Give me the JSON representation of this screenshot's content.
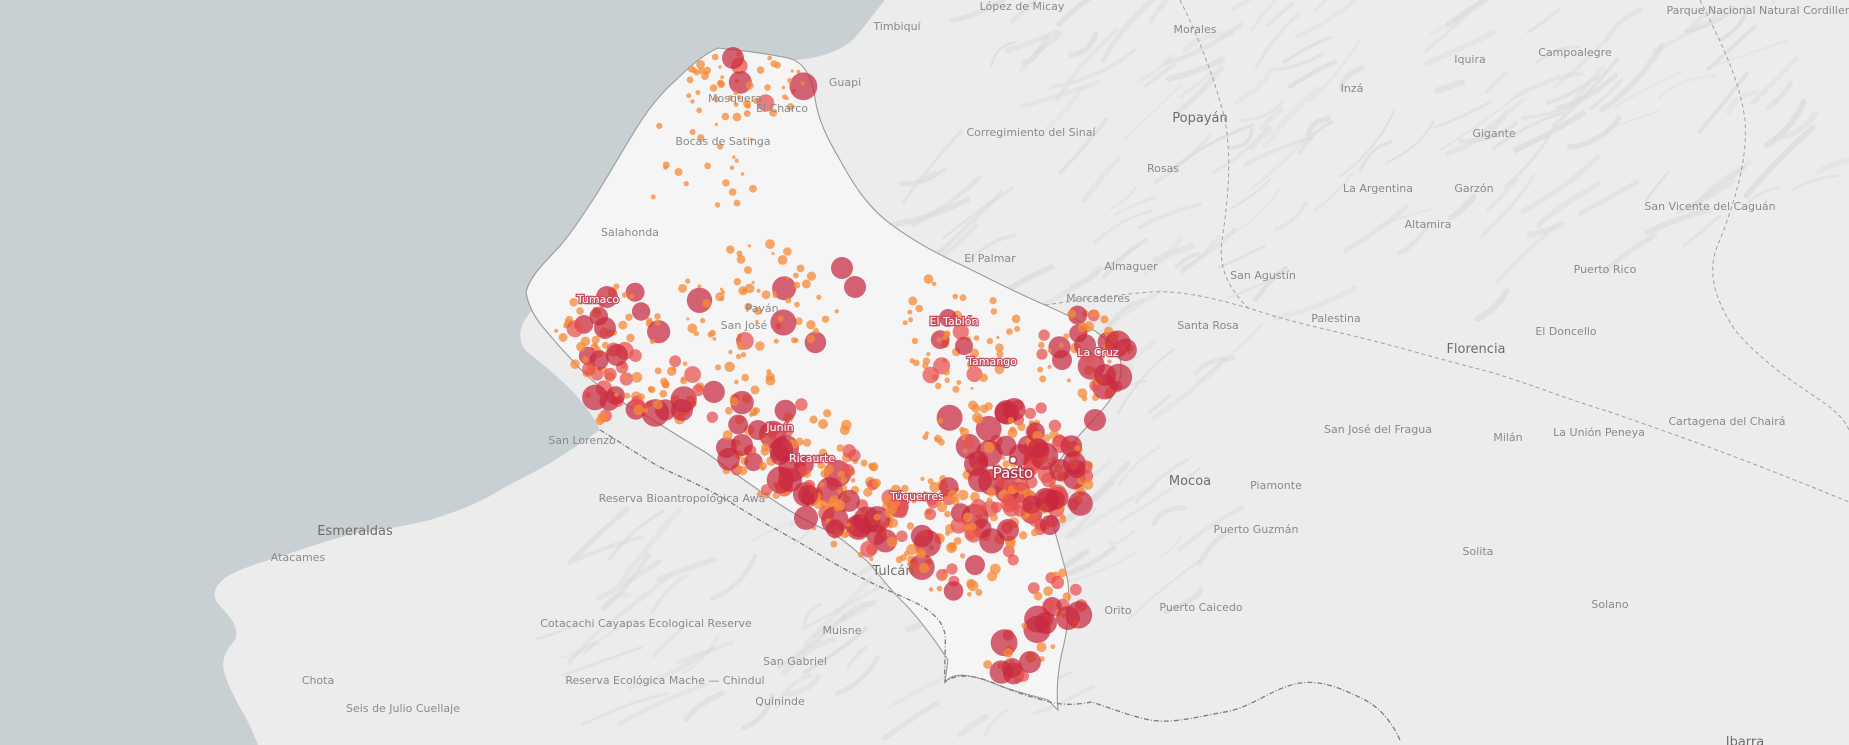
{
  "map": {
    "colors": {
      "ocean": "#c9d0d3",
      "land_outside": "#ececec",
      "land_region": "#f5f5f5",
      "relief": "#dcdcdc",
      "border": "#7d7d7d",
      "point_small": "#f58a3a",
      "point_medium": "#e8504f",
      "point_large": "#c8283e"
    },
    "labels": [
      {
        "name": "López de Micay",
        "size": "sm"
      },
      {
        "name": "Timbiquí",
        "size": "sm"
      },
      {
        "name": "Morales",
        "size": "sm"
      },
      {
        "name": "Parque Nacional Natural Cordillera de los Picachos",
        "size": "sm"
      },
      {
        "name": "Iquira",
        "size": "sm"
      },
      {
        "name": "Campoalegre",
        "size": "sm"
      },
      {
        "name": "Guapi",
        "size": "sm"
      },
      {
        "name": "Inzá",
        "size": "sm"
      },
      {
        "name": "Mosquera",
        "size": "sm"
      },
      {
        "name": "El Charco",
        "size": "sm"
      },
      {
        "name": "Popayán",
        "size": "md"
      },
      {
        "name": "Corregimiento del Sinaí",
        "size": "sm"
      },
      {
        "name": "Bocas de Satinga",
        "size": "sm"
      },
      {
        "name": "Gigante",
        "size": "sm"
      },
      {
        "name": "Rosas",
        "size": "sm"
      },
      {
        "name": "La Argentina",
        "size": "sm"
      },
      {
        "name": "Garzón",
        "size": "sm"
      },
      {
        "name": "San Vicente del Caguán",
        "size": "sm"
      },
      {
        "name": "Altamira",
        "size": "sm"
      },
      {
        "name": "Salahonda",
        "size": "sm"
      },
      {
        "name": "El Palmar",
        "size": "sm"
      },
      {
        "name": "Almaguer",
        "size": "sm"
      },
      {
        "name": "Puerto Rico",
        "size": "sm"
      },
      {
        "name": "San Agustín",
        "size": "sm"
      },
      {
        "name": "Mercaderes",
        "size": "sm"
      },
      {
        "name": "Tumaco",
        "size": "on"
      },
      {
        "name": "Payán",
        "size": "sm"
      },
      {
        "name": "San José",
        "size": "sm"
      },
      {
        "name": "Santa Rosa",
        "size": "sm"
      },
      {
        "name": "El Tablón",
        "size": "on"
      },
      {
        "name": "Palestina",
        "size": "sm"
      },
      {
        "name": "El Doncello",
        "size": "sm"
      },
      {
        "name": "Florencia",
        "size": "md"
      },
      {
        "name": "La Cruz",
        "size": "on"
      },
      {
        "name": "Tamango",
        "size": "on"
      },
      {
        "name": "Cartagena del Chairá",
        "size": "sm"
      },
      {
        "name": "San José del Fragua",
        "size": "sm"
      },
      {
        "name": "Junín",
        "size": "on"
      },
      {
        "name": "Milán",
        "size": "sm"
      },
      {
        "name": "La Unión Peneya",
        "size": "sm"
      },
      {
        "name": "San Lorenzo",
        "size": "sm"
      },
      {
        "name": "Ricaurte",
        "size": "on"
      },
      {
        "name": "Pasto",
        "size": "city"
      },
      {
        "name": "Mocoa",
        "size": "md"
      },
      {
        "name": "Piamonte",
        "size": "sm"
      },
      {
        "name": "Reserva Bioantropológica Awá",
        "size": "sm"
      },
      {
        "name": "Túquerres",
        "size": "on"
      },
      {
        "name": "Esmeraldas",
        "size": "md"
      },
      {
        "name": "Puerto Guzmán",
        "size": "sm"
      },
      {
        "name": "Atacames",
        "size": "sm"
      },
      {
        "name": "Solita",
        "size": "sm"
      },
      {
        "name": "Tulcán",
        "size": "md"
      },
      {
        "name": "Solano",
        "size": "sm"
      },
      {
        "name": "Orito",
        "size": "sm"
      },
      {
        "name": "Puerto Caicedo",
        "size": "sm"
      },
      {
        "name": "Cotacachi Cayapas Ecological Reserve",
        "size": "sm"
      },
      {
        "name": "Muisne",
        "size": "sm"
      },
      {
        "name": "San Gabriel",
        "size": "sm"
      },
      {
        "name": "Chota",
        "size": "sm"
      },
      {
        "name": "Reserva Ecológica Mache — Chindul",
        "size": "sm"
      },
      {
        "name": "Seis de Julio Cuellaje",
        "size": "sm"
      },
      {
        "name": "Quininde",
        "size": "sm"
      },
      {
        "name": "Ibarra",
        "size": "md"
      },
      {
        "name": "Parque Nacional",
        "size": "sm"
      }
    ]
  }
}
